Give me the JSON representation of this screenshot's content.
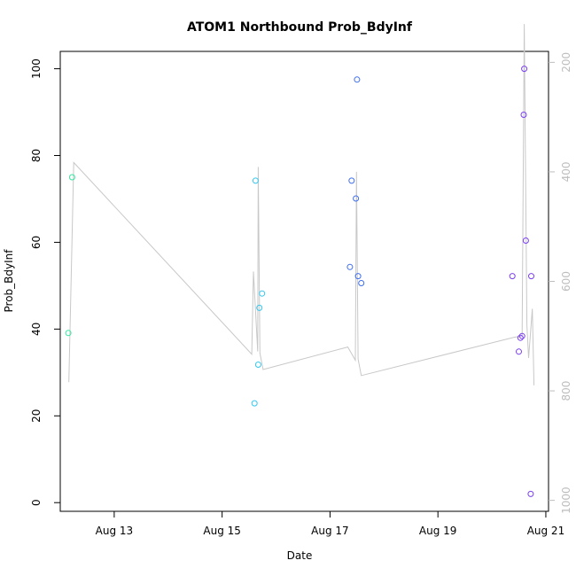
{
  "chart_data": {
    "type": "scatter",
    "title": "ATOM1 Northbound Prob_BdyInf",
    "xlabel": "Date",
    "ylabel": "Prob_BdyInf",
    "x_tick_labels": [
      "Aug 13",
      "Aug 15",
      "Aug 17",
      "Aug 19",
      "Aug 21"
    ],
    "x_tick_days": [
      13,
      15,
      17,
      19,
      21
    ],
    "xlim_days": [
      12.0,
      21.05
    ],
    "ylim": [
      -2,
      104
    ],
    "y_ticks": [
      0,
      20,
      40,
      60,
      80,
      100
    ],
    "secondary_axis": {
      "side": "right",
      "reversed": true,
      "range": [
        180,
        1020
      ],
      "ticks": [
        200,
        400,
        600,
        800,
        1000
      ],
      "color": "#bdbdbd"
    },
    "grid": false,
    "points": [
      {
        "day": 12.15,
        "value": 39.1,
        "color": "#33e89f"
      },
      {
        "day": 12.22,
        "value": 75.0,
        "color": "#33e89f"
      },
      {
        "day": 15.6,
        "value": 22.9,
        "color": "#33c8ef"
      },
      {
        "day": 15.62,
        "value": 74.2,
        "color": "#33c8ef"
      },
      {
        "day": 15.67,
        "value": 31.8,
        "color": "#33c8ef"
      },
      {
        "day": 15.69,
        "value": 44.9,
        "color": "#33c8ef"
      },
      {
        "day": 15.74,
        "value": 48.2,
        "color": "#33c8ef"
      },
      {
        "day": 17.37,
        "value": 54.3,
        "color": "#3f6ef0"
      },
      {
        "day": 17.4,
        "value": 74.2,
        "color": "#3f6ef0"
      },
      {
        "day": 17.48,
        "value": 70.1,
        "color": "#3f6ef0"
      },
      {
        "day": 17.5,
        "value": 97.5,
        "color": "#3f6ef0"
      },
      {
        "day": 17.52,
        "value": 52.2,
        "color": "#3f6ef0"
      },
      {
        "day": 17.58,
        "value": 50.6,
        "color": "#3f6ef0"
      },
      {
        "day": 20.38,
        "value": 52.2,
        "color": "#7a3ff0"
      },
      {
        "day": 20.5,
        "value": 34.8,
        "color": "#7a3ff0"
      },
      {
        "day": 20.53,
        "value": 38.0,
        "color": "#7a3ff0"
      },
      {
        "day": 20.56,
        "value": 38.4,
        "color": "#7a3ff0"
      },
      {
        "day": 20.59,
        "value": 89.4,
        "color": "#7a3ff0"
      },
      {
        "day": 20.6,
        "value": 100.0,
        "color": "#7a3ff0"
      },
      {
        "day": 20.63,
        "value": 60.4,
        "color": "#7a3ff0"
      },
      {
        "day": 20.72,
        "value": 2.0,
        "color": "#7a3ff0"
      },
      {
        "day": 20.73,
        "value": 52.2,
        "color": "#7a3ff0"
      }
    ],
    "secondary_line": {
      "color": "#c8c8c8",
      "points": [
        [
          12.16,
          784
        ],
        [
          12.25,
          383
        ],
        [
          15.55,
          733
        ],
        [
          15.58,
          582
        ],
        [
          15.66,
          728
        ],
        [
          15.67,
          391
        ],
        [
          15.7,
          731
        ],
        [
          15.76,
          761
        ],
        [
          17.33,
          720
        ],
        [
          17.47,
          744
        ],
        [
          17.49,
          400
        ],
        [
          17.52,
          742
        ],
        [
          17.58,
          772
        ],
        [
          20.42,
          702
        ],
        [
          20.56,
          700
        ],
        [
          20.6,
          130
        ],
        [
          20.65,
          680
        ],
        [
          20.68,
          740
        ],
        [
          20.75,
          650
        ],
        [
          20.78,
          790
        ]
      ]
    }
  }
}
